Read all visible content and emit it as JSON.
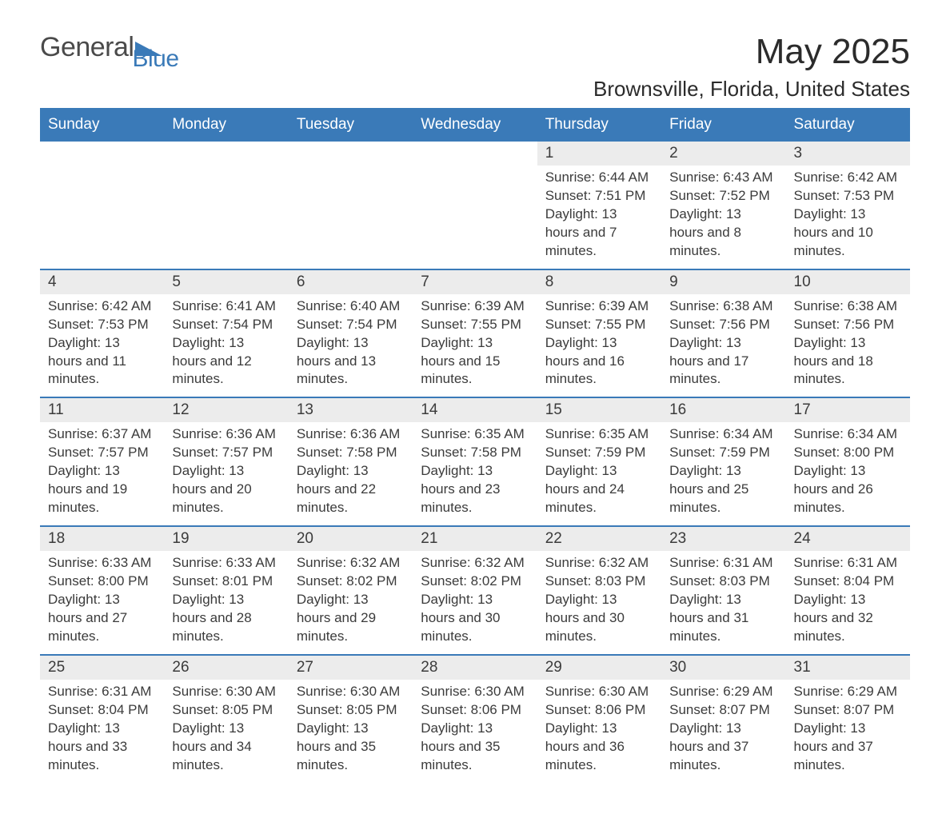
{
  "brand": {
    "main": "General",
    "sub": "Blue"
  },
  "title": "May 2025",
  "location": "Brownsville, Florida, United States",
  "colors": {
    "header_bg": "#3a7ab8",
    "header_text": "#ffffff",
    "daynum_bg": "#ececec",
    "text": "#3b3b3b",
    "border": "#3a7ab8",
    "background": "#ffffff"
  },
  "weekdays": [
    "Sunday",
    "Monday",
    "Tuesday",
    "Wednesday",
    "Thursday",
    "Friday",
    "Saturday"
  ],
  "weeks": [
    [
      {
        "empty": true
      },
      {
        "empty": true
      },
      {
        "empty": true
      },
      {
        "empty": true
      },
      {
        "day": "1",
        "sunrise": "Sunrise: 6:44 AM",
        "sunset": "Sunset: 7:51 PM",
        "daylight": "Daylight: 13 hours and 7 minutes."
      },
      {
        "day": "2",
        "sunrise": "Sunrise: 6:43 AM",
        "sunset": "Sunset: 7:52 PM",
        "daylight": "Daylight: 13 hours and 8 minutes."
      },
      {
        "day": "3",
        "sunrise": "Sunrise: 6:42 AM",
        "sunset": "Sunset: 7:53 PM",
        "daylight": "Daylight: 13 hours and 10 minutes."
      }
    ],
    [
      {
        "day": "4",
        "sunrise": "Sunrise: 6:42 AM",
        "sunset": "Sunset: 7:53 PM",
        "daylight": "Daylight: 13 hours and 11 minutes."
      },
      {
        "day": "5",
        "sunrise": "Sunrise: 6:41 AM",
        "sunset": "Sunset: 7:54 PM",
        "daylight": "Daylight: 13 hours and 12 minutes."
      },
      {
        "day": "6",
        "sunrise": "Sunrise: 6:40 AM",
        "sunset": "Sunset: 7:54 PM",
        "daylight": "Daylight: 13 hours and 13 minutes."
      },
      {
        "day": "7",
        "sunrise": "Sunrise: 6:39 AM",
        "sunset": "Sunset: 7:55 PM",
        "daylight": "Daylight: 13 hours and 15 minutes."
      },
      {
        "day": "8",
        "sunrise": "Sunrise: 6:39 AM",
        "sunset": "Sunset: 7:55 PM",
        "daylight": "Daylight: 13 hours and 16 minutes."
      },
      {
        "day": "9",
        "sunrise": "Sunrise: 6:38 AM",
        "sunset": "Sunset: 7:56 PM",
        "daylight": "Daylight: 13 hours and 17 minutes."
      },
      {
        "day": "10",
        "sunrise": "Sunrise: 6:38 AM",
        "sunset": "Sunset: 7:56 PM",
        "daylight": "Daylight: 13 hours and 18 minutes."
      }
    ],
    [
      {
        "day": "11",
        "sunrise": "Sunrise: 6:37 AM",
        "sunset": "Sunset: 7:57 PM",
        "daylight": "Daylight: 13 hours and 19 minutes."
      },
      {
        "day": "12",
        "sunrise": "Sunrise: 6:36 AM",
        "sunset": "Sunset: 7:57 PM",
        "daylight": "Daylight: 13 hours and 20 minutes."
      },
      {
        "day": "13",
        "sunrise": "Sunrise: 6:36 AM",
        "sunset": "Sunset: 7:58 PM",
        "daylight": "Daylight: 13 hours and 22 minutes."
      },
      {
        "day": "14",
        "sunrise": "Sunrise: 6:35 AM",
        "sunset": "Sunset: 7:58 PM",
        "daylight": "Daylight: 13 hours and 23 minutes."
      },
      {
        "day": "15",
        "sunrise": "Sunrise: 6:35 AM",
        "sunset": "Sunset: 7:59 PM",
        "daylight": "Daylight: 13 hours and 24 minutes."
      },
      {
        "day": "16",
        "sunrise": "Sunrise: 6:34 AM",
        "sunset": "Sunset: 7:59 PM",
        "daylight": "Daylight: 13 hours and 25 minutes."
      },
      {
        "day": "17",
        "sunrise": "Sunrise: 6:34 AM",
        "sunset": "Sunset: 8:00 PM",
        "daylight": "Daylight: 13 hours and 26 minutes."
      }
    ],
    [
      {
        "day": "18",
        "sunrise": "Sunrise: 6:33 AM",
        "sunset": "Sunset: 8:00 PM",
        "daylight": "Daylight: 13 hours and 27 minutes."
      },
      {
        "day": "19",
        "sunrise": "Sunrise: 6:33 AM",
        "sunset": "Sunset: 8:01 PM",
        "daylight": "Daylight: 13 hours and 28 minutes."
      },
      {
        "day": "20",
        "sunrise": "Sunrise: 6:32 AM",
        "sunset": "Sunset: 8:02 PM",
        "daylight": "Daylight: 13 hours and 29 minutes."
      },
      {
        "day": "21",
        "sunrise": "Sunrise: 6:32 AM",
        "sunset": "Sunset: 8:02 PM",
        "daylight": "Daylight: 13 hours and 30 minutes."
      },
      {
        "day": "22",
        "sunrise": "Sunrise: 6:32 AM",
        "sunset": "Sunset: 8:03 PM",
        "daylight": "Daylight: 13 hours and 30 minutes."
      },
      {
        "day": "23",
        "sunrise": "Sunrise: 6:31 AM",
        "sunset": "Sunset: 8:03 PM",
        "daylight": "Daylight: 13 hours and 31 minutes."
      },
      {
        "day": "24",
        "sunrise": "Sunrise: 6:31 AM",
        "sunset": "Sunset: 8:04 PM",
        "daylight": "Daylight: 13 hours and 32 minutes."
      }
    ],
    [
      {
        "day": "25",
        "sunrise": "Sunrise: 6:31 AM",
        "sunset": "Sunset: 8:04 PM",
        "daylight": "Daylight: 13 hours and 33 minutes."
      },
      {
        "day": "26",
        "sunrise": "Sunrise: 6:30 AM",
        "sunset": "Sunset: 8:05 PM",
        "daylight": "Daylight: 13 hours and 34 minutes."
      },
      {
        "day": "27",
        "sunrise": "Sunrise: 6:30 AM",
        "sunset": "Sunset: 8:05 PM",
        "daylight": "Daylight: 13 hours and 35 minutes."
      },
      {
        "day": "28",
        "sunrise": "Sunrise: 6:30 AM",
        "sunset": "Sunset: 8:06 PM",
        "daylight": "Daylight: 13 hours and 35 minutes."
      },
      {
        "day": "29",
        "sunrise": "Sunrise: 6:30 AM",
        "sunset": "Sunset: 8:06 PM",
        "daylight": "Daylight: 13 hours and 36 minutes."
      },
      {
        "day": "30",
        "sunrise": "Sunrise: 6:29 AM",
        "sunset": "Sunset: 8:07 PM",
        "daylight": "Daylight: 13 hours and 37 minutes."
      },
      {
        "day": "31",
        "sunrise": "Sunrise: 6:29 AM",
        "sunset": "Sunset: 8:07 PM",
        "daylight": "Daylight: 13 hours and 37 minutes."
      }
    ]
  ]
}
